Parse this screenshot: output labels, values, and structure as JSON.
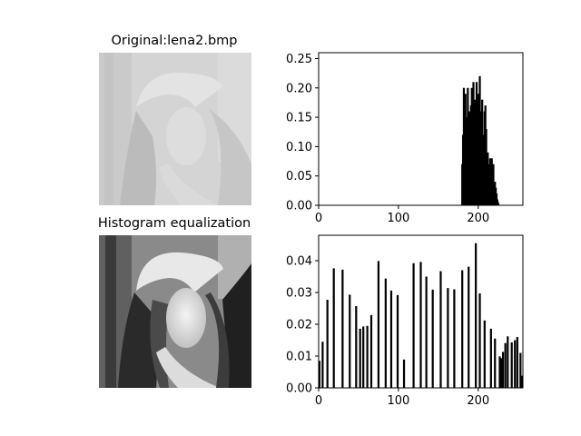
{
  "colors": {
    "bars": "#000000",
    "axes": "#000000",
    "background": "#ffffff"
  },
  "images": {
    "original": {
      "title": "Original:lena2.bmp",
      "contrast": "low",
      "tone_range": [
        182,
        224
      ]
    },
    "equalized": {
      "title": "Histogram equalization",
      "contrast": "high",
      "tone_range": [
        0,
        255
      ]
    }
  },
  "chart_data": [
    {
      "type": "bar",
      "title": "",
      "xlabel": "",
      "ylabel": "",
      "xlim": [
        0,
        256
      ],
      "ylim": [
        0,
        0.26
      ],
      "xticks": [
        "0",
        "100",
        "200"
      ],
      "yticks": [
        "0.00",
        "0.05",
        "0.10",
        "0.15",
        "0.20",
        "0.25"
      ],
      "x": [
        180,
        181,
        182,
        183,
        184,
        185,
        186,
        187,
        188,
        189,
        190,
        191,
        192,
        193,
        194,
        195,
        196,
        197,
        198,
        199,
        200,
        201,
        202,
        203,
        204,
        205,
        206,
        207,
        208,
        209,
        210,
        211,
        212,
        213,
        214,
        215,
        216,
        217,
        218,
        219,
        220,
        221,
        222,
        223,
        224,
        225
      ],
      "values": [
        0.07,
        0.12,
        0.2,
        0.13,
        0.19,
        0.15,
        0.11,
        0.2,
        0.13,
        0.16,
        0.1,
        0.17,
        0.2,
        0.15,
        0.21,
        0.14,
        0.18,
        0.12,
        0.21,
        0.13,
        0.19,
        0.11,
        0.22,
        0.16,
        0.12,
        0.18,
        0.12,
        0.1,
        0.16,
        0.17,
        0.13,
        0.08,
        0.09,
        0.07,
        0.05,
        0.08,
        0.06,
        0.08,
        0.05,
        0.07,
        0.03,
        0.04,
        0.03,
        0.02,
        0.01,
        0.005
      ]
    },
    {
      "type": "bar",
      "title": "",
      "xlabel": "",
      "ylabel": "",
      "xlim": [
        0,
        256
      ],
      "ylim": [
        0,
        0.048
      ],
      "xticks": [
        "0",
        "100",
        "200"
      ],
      "yticks": [
        "0.00",
        "0.01",
        "0.02",
        "0.03",
        "0.04"
      ],
      "x": [
        1,
        5,
        11,
        19,
        30,
        39,
        47,
        52,
        56,
        61,
        66,
        75,
        84,
        91,
        99,
        107,
        119,
        128,
        135,
        143,
        153,
        162,
        170,
        180,
        188,
        197,
        202,
        208,
        216,
        221,
        227,
        229,
        231,
        234,
        237,
        242,
        246,
        249,
        253,
        255
      ],
      "values": [
        0.0085,
        0.0145,
        0.0277,
        0.0376,
        0.0372,
        0.0293,
        0.0257,
        0.0186,
        0.0193,
        0.0195,
        0.0229,
        0.0399,
        0.0344,
        0.0306,
        0.0292,
        0.0089,
        0.0392,
        0.0396,
        0.035,
        0.0309,
        0.0367,
        0.0314,
        0.031,
        0.037,
        0.0381,
        0.0455,
        0.0297,
        0.0212,
        0.0186,
        0.0155,
        0.0099,
        0.0093,
        0.0113,
        0.0141,
        0.0162,
        0.0143,
        0.015,
        0.016,
        0.011,
        0.0038
      ]
    }
  ]
}
